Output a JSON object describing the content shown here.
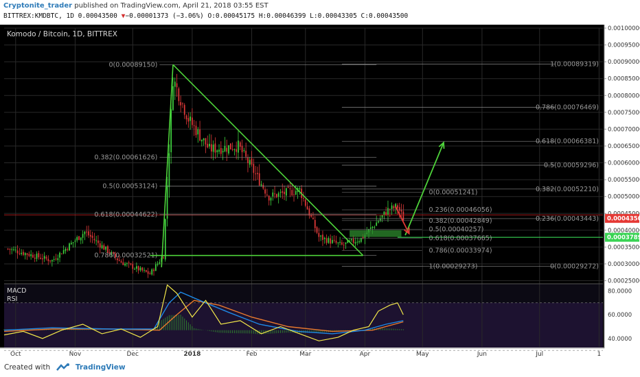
{
  "header": {
    "author": "Cryptonite_trader",
    "published": "published on TradingView.com, April 21, 2018 03:55 EST",
    "symbol_line": "BITTREX:KMDBTC, 1D 0.00043500",
    "change_marker": "▼",
    "change_text": "−0.00001373 (−3.06%)",
    "ohlc_text": "O:0.00045175 H:0.00046399 L:0.00043305 C:0.00043500"
  },
  "footer": {
    "created_with": "Created with",
    "brand": "TradingView"
  },
  "colors": {
    "background": "#000000",
    "grid": "#2a2a2a",
    "candle_up": "#3fd33f",
    "candle_down": "#e23a3a",
    "trendline": "#4ed33a",
    "fib": "#8a8a8a",
    "macd": "#1e88e5",
    "signal": "#e8792e",
    "rsi": "#f4e94a",
    "price_tag": "#e53935",
    "level_tag": "#39d353"
  },
  "chart_data": {
    "type": "candlestick",
    "title": "Komodo / Bitcoin, 1D, BITTREX",
    "y_axis": {
      "range": [
        0.000245,
        0.001
      ],
      "ticks": [
        "0.00100000",
        "0.00095000",
        "0.00090000",
        "0.00085000",
        "0.00080000",
        "0.00075000",
        "0.00070000",
        "0.00065000",
        "0.00060000",
        "0.00055000",
        "0.00050000",
        "0.00045000",
        "0.00040000",
        "0.00035000",
        "0.00030000",
        "0.00025000"
      ],
      "tick_values": [
        0.001,
        0.00095,
        0.0009,
        0.00085,
        0.0008,
        0.00075,
        0.0007,
        0.00065,
        0.0006,
        0.00055,
        0.0005,
        0.00045,
        0.0004,
        0.00035,
        0.0003,
        0.00025
      ]
    },
    "x_axis": {
      "labels": [
        "Oct",
        "Nov",
        "Dec",
        "2018",
        "Feb",
        "Mar",
        "Apr",
        "May",
        "Jun",
        "Jul",
        "1"
      ],
      "dates": [
        "2017-10-01",
        "2017-11-01",
        "2017-12-01",
        "2018-01-01",
        "2018-02-01",
        "2018-03-01",
        "2018-04-01",
        "2018-05-01",
        "2018-06-01",
        "2018-07-01",
        "2018-08-01"
      ],
      "range": [
        "2017-09-25",
        "2018-08-03"
      ]
    },
    "last_price": {
      "label": "0.00043500",
      "value": 0.000435
    },
    "support_level": {
      "label": "0.00037897",
      "value": 0.00037897
    },
    "anchors": [
      {
        "date": "2017-09-27",
        "value": 0.000345
      },
      {
        "date": "2017-10-20",
        "value": 0.00031
      },
      {
        "date": "2017-11-06",
        "value": 0.000395
      },
      {
        "date": "2017-11-25",
        "value": 0.000305
      },
      {
        "date": "2017-12-10",
        "value": 0.00027
      },
      {
        "date": "2017-12-17",
        "value": 0.000325
      },
      {
        "date": "2017-12-22",
        "value": 0.00085
      },
      {
        "date": "2017-12-30",
        "value": 0.00073
      },
      {
        "date": "2018-01-10",
        "value": 0.00064
      },
      {
        "date": "2018-01-25",
        "value": 0.00065
      },
      {
        "date": "2018-02-10",
        "value": 0.0005
      },
      {
        "date": "2018-02-26",
        "value": 0.00052
      },
      {
        "date": "2018-03-08",
        "value": 0.00038
      },
      {
        "date": "2018-03-20",
        "value": 0.000355
      },
      {
        "date": "2018-03-30",
        "value": 0.000375
      },
      {
        "date": "2018-04-05",
        "value": 0.00041
      },
      {
        "date": "2018-04-13",
        "value": 0.00046
      },
      {
        "date": "2018-04-18",
        "value": 0.00047
      },
      {
        "date": "2018-04-21",
        "value": 0.000435
      }
    ],
    "trendlines": [
      {
        "name": "descending-resistance",
        "from": {
          "date": "2017-12-22",
          "value": 0.0008915
        },
        "to": {
          "date": "2018-03-31",
          "value": 0.000325
        }
      },
      {
        "name": "pump-wick-line",
        "from": {
          "date": "2017-12-16",
          "value": 0.00029
        },
        "to": {
          "date": "2017-12-22",
          "value": 0.0008915
        }
      },
      {
        "name": "triangle-base",
        "from": {
          "date": "2017-12-10",
          "value": 0.000325
        },
        "to": {
          "date": "2018-03-31",
          "value": 0.000325
        }
      }
    ],
    "fib_left": {
      "range": [
        "2017-12-15",
        "2018-04-07"
      ],
      "levels": [
        {
          "label": "0(0.00089150)",
          "value": 0.0008915
        },
        {
          "label": "0.382(0.00061626)",
          "value": 0.00061626
        },
        {
          "label": "0.5(0.00053124)",
          "value": 0.00053124
        },
        {
          "label": "0.618(0.00044622)",
          "value": 0.00044622
        },
        {
          "label": "0.786(0.00032521)",
          "value": 0.00032521
        }
      ]
    },
    "fib_right": {
      "range": [
        "2018-03-20",
        "2018-08-03"
      ],
      "levels": [
        {
          "label": "1(0.00089319)",
          "value": 0.00089319
        },
        {
          "label": "0.786(0.00076469)",
          "value": 0.00076469
        },
        {
          "label": "0.618(0.00066381)",
          "value": 0.00066381
        },
        {
          "label": "0.5(0.00059296)",
          "value": 0.00059296
        },
        {
          "label": "0.382(0.00052210)",
          "value": 0.0005221
        },
        {
          "label": "0.236(0.00043443)",
          "value": 0.00043443
        },
        {
          "label": "0(0.00029272)",
          "value": 0.00029272
        }
      ]
    },
    "fib_mid": {
      "range": [
        "2018-03-20",
        "2018-04-20"
      ],
      "levels": [
        {
          "label": "0(0.00051241)",
          "value": 0.00051241
        },
        {
          "label": "0.236(0.00046056)",
          "value": 0.00046056
        },
        {
          "label": "0.382(0.00042849)",
          "value": 0.00042849
        },
        {
          "label": "0.5(0.00040257)",
          "value": 0.00040257
        },
        {
          "label": "0.618(0.00037665)",
          "value": 0.00037665
        },
        {
          "label": "0.786(0.00033974)",
          "value": 0.00033974
        },
        {
          "label": "1(0.00029273)",
          "value": 0.00029273
        }
      ]
    },
    "horizontal_line": {
      "value": 0.000445,
      "color": "#b71c1c"
    },
    "support_zone": {
      "from": "2018-03-24",
      "to": "2018-04-20",
      "low": 0.00038,
      "high": 0.0004
    },
    "arrows": [
      {
        "name": "up-projection",
        "from": {
          "date": "2018-04-22",
          "value": 0.000385
        },
        "to": {
          "date": "2018-05-12",
          "value": 0.00066
        },
        "color": "#4ed33a"
      },
      {
        "name": "down-projection",
        "from": {
          "date": "2018-04-17",
          "value": 0.00047
        },
        "to": {
          "date": "2018-04-24",
          "value": 0.00039
        },
        "color": "#e53935"
      }
    ],
    "indicators": {
      "macd_label": "MACD",
      "rsi_label": "RSI",
      "y_ticks": [
        "80.0000",
        "60.0000",
        "40.0000"
      ],
      "y_tick_values": [
        80,
        60,
        40
      ],
      "range": [
        33,
        86
      ],
      "rsi_upper": 70,
      "rsi_lower": 30,
      "rsi": [
        {
          "date": "2017-09-25",
          "value": 43
        },
        {
          "date": "2017-10-05",
          "value": 46
        },
        {
          "date": "2017-10-15",
          "value": 40
        },
        {
          "date": "2017-10-25",
          "value": 47
        },
        {
          "date": "2017-11-05",
          "value": 52
        },
        {
          "date": "2017-11-15",
          "value": 44
        },
        {
          "date": "2017-11-25",
          "value": 48
        },
        {
          "date": "2017-12-05",
          "value": 41
        },
        {
          "date": "2017-12-14",
          "value": 50
        },
        {
          "date": "2017-12-19",
          "value": 85
        },
        {
          "date": "2017-12-24",
          "value": 78
        },
        {
          "date": "2018-01-01",
          "value": 58
        },
        {
          "date": "2018-01-08",
          "value": 72
        },
        {
          "date": "2018-01-16",
          "value": 52
        },
        {
          "date": "2018-01-26",
          "value": 55
        },
        {
          "date": "2018-02-06",
          "value": 44
        },
        {
          "date": "2018-02-16",
          "value": 50
        },
        {
          "date": "2018-02-26",
          "value": 44
        },
        {
          "date": "2018-03-08",
          "value": 38
        },
        {
          "date": "2018-03-18",
          "value": 41
        },
        {
          "date": "2018-03-26",
          "value": 47
        },
        {
          "date": "2018-04-03",
          "value": 50
        },
        {
          "date": "2018-04-08",
          "value": 63
        },
        {
          "date": "2018-04-14",
          "value": 68
        },
        {
          "date": "2018-04-18",
          "value": 70
        },
        {
          "date": "2018-04-21",
          "value": 60
        }
      ],
      "macd": [
        {
          "date": "2017-09-25",
          "value": 47
        },
        {
          "date": "2017-10-20",
          "value": 49
        },
        {
          "date": "2017-11-20",
          "value": 48
        },
        {
          "date": "2017-12-12",
          "value": 48
        },
        {
          "date": "2017-12-20",
          "value": 70
        },
        {
          "date": "2017-12-26",
          "value": 79
        },
        {
          "date": "2018-01-05",
          "value": 72
        },
        {
          "date": "2018-01-20",
          "value": 62
        },
        {
          "date": "2018-02-05",
          "value": 52
        },
        {
          "date": "2018-02-25",
          "value": 46
        },
        {
          "date": "2018-03-15",
          "value": 44
        },
        {
          "date": "2018-04-01",
          "value": 47
        },
        {
          "date": "2018-04-12",
          "value": 52
        },
        {
          "date": "2018-04-21",
          "value": 55
        }
      ],
      "signal": [
        {
          "date": "2017-09-25",
          "value": 46
        },
        {
          "date": "2017-10-20",
          "value": 48
        },
        {
          "date": "2017-11-20",
          "value": 48
        },
        {
          "date": "2017-12-15",
          "value": 47
        },
        {
          "date": "2017-12-24",
          "value": 60
        },
        {
          "date": "2018-01-02",
          "value": 72
        },
        {
          "date": "2018-01-15",
          "value": 68
        },
        {
          "date": "2018-02-01",
          "value": 58
        },
        {
          "date": "2018-02-20",
          "value": 50
        },
        {
          "date": "2018-03-15",
          "value": 46
        },
        {
          "date": "2018-04-05",
          "value": 47
        },
        {
          "date": "2018-04-21",
          "value": 54
        }
      ]
    }
  }
}
